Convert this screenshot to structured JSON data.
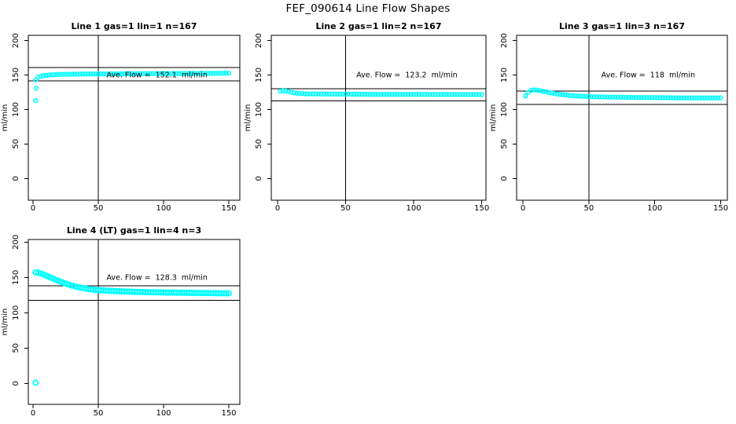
{
  "figure_title": "FEF_090614  Line Flow Shapes",
  "colors": {
    "points": "#00FFFF",
    "axis": "#000000",
    "background": "#FFFFFF",
    "text": "#000000"
  },
  "axes": {
    "x_ticks": [
      0,
      50,
      100,
      150
    ],
    "y_ticks": [
      0,
      50,
      100,
      150,
      200
    ],
    "y_axis_label": "ml/min",
    "xlim": [
      -4,
      158
    ],
    "ylim": [
      -32,
      208
    ],
    "grid": false
  },
  "chart_data": [
    {
      "type": "scatter",
      "title": "Line 1 gas=1 lin=1 n=167",
      "annotation": "Ave. Flow =  152.1  ml/min",
      "ave_flow_ml_min": 152.1,
      "n": 167,
      "upper_ref_line": 161,
      "lower_ref_line": 141.5,
      "vline_x": 50,
      "x_start": 2,
      "x_step": 2,
      "y": [
        143,
        147,
        148.5,
        149.2,
        149.6,
        150,
        150.3,
        150.5,
        150.7,
        150.9,
        151,
        151.1,
        151.2,
        151.25,
        151.3,
        151.35,
        151.4,
        151.45,
        151.5,
        151.5,
        151.55,
        151.6,
        151.6,
        151.65,
        151.65,
        151.7,
        151.7,
        151.75,
        151.75,
        151.8,
        151.8,
        151.8,
        151.85,
        151.85,
        151.9,
        151.9,
        151.9,
        151.95,
        151.95,
        152,
        152,
        152,
        152,
        152.05,
        152.05,
        152.1,
        152.1,
        152.1,
        152.15,
        152.15,
        152.2,
        152.2,
        152.2,
        152.25,
        152.25,
        152.3,
        152.3,
        152.3,
        152.35,
        152.35,
        152.4,
        152.4,
        152.4,
        152.45,
        152.45,
        152.5,
        152.5,
        152.5,
        152.55,
        152.6,
        152.6,
        152.65,
        152.7,
        152.8,
        152.9
      ],
      "extra_points": [
        [
          2,
          113
        ],
        [
          2.5,
          131
        ]
      ]
    },
    {
      "type": "scatter",
      "title": "Line 2 gas=1 lin=2 n=167",
      "annotation": "Ave. Flow =  123.2  ml/min",
      "ave_flow_ml_min": 123.2,
      "n": 167,
      "upper_ref_line": 130,
      "lower_ref_line": 112.5,
      "vline_x": 50,
      "x_start": 2,
      "x_step": 2,
      "y": [
        126.5,
        127.2,
        126.9,
        126.1,
        125.2,
        124.4,
        123.8,
        123.4,
        123.1,
        122.9,
        122.8,
        122.7,
        122.65,
        122.6,
        122.55,
        122.5,
        122.5,
        122.45,
        122.45,
        122.4,
        122.4,
        122.4,
        122.35,
        122.35,
        122.3,
        122.3,
        122.3,
        122.3,
        122.25,
        122.25,
        122.25,
        122.2,
        122.2,
        122.2,
        122.2,
        122.15,
        122.15,
        122.15,
        122.1,
        122.1,
        122.1,
        122.1,
        122.05,
        122.05,
        122.05,
        122.05,
        122,
        122,
        122,
        122,
        122,
        121.95,
        121.95,
        121.95,
        121.95,
        121.9,
        121.9,
        121.9,
        121.9,
        121.9,
        121.85,
        121.85,
        121.85,
        121.85,
        121.85,
        121.8,
        121.8,
        121.8,
        121.8,
        121.8,
        121.8,
        121.8,
        121.75,
        121.75,
        121.75
      ],
      "extra_points": []
    },
    {
      "type": "scatter",
      "title": "Line 3 gas=1 lin=3 n=167",
      "annotation": "Ave. Flow =  118  ml/min",
      "ave_flow_ml_min": 118,
      "n": 167,
      "upper_ref_line": 127,
      "lower_ref_line": 107.5,
      "vline_x": 50,
      "x_start": 2,
      "x_step": 2,
      "y": [
        120,
        125,
        127.8,
        128.6,
        128.4,
        127.8,
        127,
        126.2,
        125.4,
        124.6,
        123.9,
        123.2,
        122.6,
        122.1,
        121.6,
        121.2,
        120.8,
        120.4,
        120.1,
        119.8,
        119.6,
        119.4,
        119.2,
        119,
        118.85,
        118.7,
        118.6,
        118.5,
        118.4,
        118.3,
        118.2,
        118.1,
        118.05,
        118,
        117.95,
        117.9,
        117.85,
        117.8,
        117.75,
        117.7,
        117.65,
        117.6,
        117.55,
        117.5,
        117.45,
        117.4,
        117.4,
        117.35,
        117.3,
        117.3,
        117.25,
        117.2,
        117.2,
        117.15,
        117.1,
        117.1,
        117.05,
        117,
        117,
        117,
        116.95,
        116.95,
        116.9,
        116.9,
        116.9,
        116.85,
        116.85,
        116.85,
        116.8,
        116.8,
        116.8,
        116.8,
        116.8,
        116.8,
        116.8
      ],
      "extra_points": [
        [
          2,
          119.5
        ]
      ]
    },
    {
      "type": "scatter",
      "title": "Line 4 (LT) gas=1 lin=4 n=3",
      "annotation": "Ave. Flow =  128.3  ml/min",
      "ave_flow_ml_min": 128.3,
      "n": 3,
      "upper_ref_line": 138,
      "lower_ref_line": 117.5,
      "vline_x": 50,
      "x_start": 2,
      "x_step": 2,
      "y": [
        157,
        156.6,
        155.6,
        154.2,
        152.6,
        151,
        149.4,
        147.8,
        146.2,
        144.7,
        143.3,
        141.9,
        140.6,
        139.4,
        138.3,
        137.3,
        136.4,
        135.6,
        134.9,
        134.3,
        133.7,
        133.2,
        132.8,
        132.4,
        132.1,
        131.8,
        131.5,
        131.3,
        131.1,
        130.9,
        130.7,
        130.5,
        130.4,
        130.2,
        130.1,
        130,
        129.85,
        129.7,
        129.6,
        129.5,
        129.4,
        129.3,
        129.2,
        129.1,
        129,
        128.95,
        128.9,
        128.8,
        128.75,
        128.7,
        128.6,
        128.55,
        128.5,
        128.45,
        128.4,
        128.35,
        128.3,
        128.25,
        128.2,
        128.15,
        128.1,
        128.05,
        128,
        127.95,
        127.9,
        127.85,
        127.8,
        127.75,
        127.7,
        127.65,
        127.6,
        127.55,
        127.5,
        127.45,
        127.4
      ],
      "extra_points": [
        [
          2,
          1
        ]
      ]
    }
  ]
}
